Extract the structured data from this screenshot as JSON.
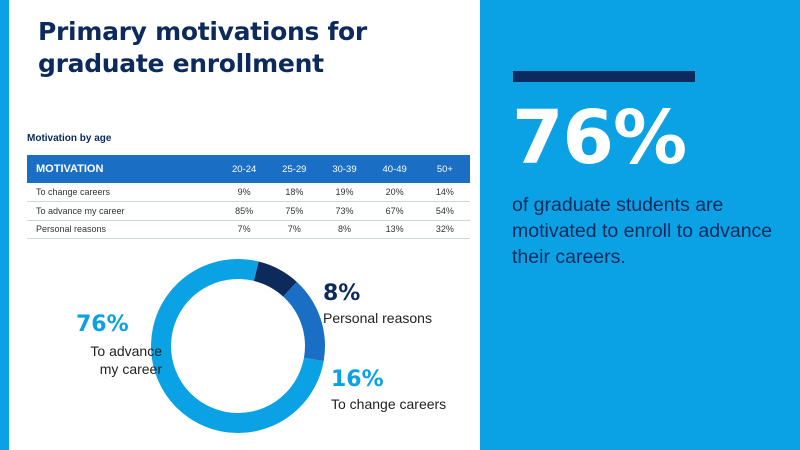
{
  "title": "Primary motivations for graduate enrollment",
  "subtitle": "Motivation by age",
  "table": {
    "headers": [
      "MOTIVATION",
      "20-24",
      "25-29",
      "30-39",
      "40-49",
      "50+"
    ],
    "rows": [
      [
        "To change careers",
        "9%",
        "18%",
        "19%",
        "20%",
        "14%"
      ],
      [
        "To advance my career",
        "85%",
        "75%",
        "73%",
        "67%",
        "54%"
      ],
      [
        "Personal reasons",
        "7%",
        "7%",
        "8%",
        "13%",
        "32%"
      ]
    ]
  },
  "chart_data": {
    "type": "pie",
    "donut": true,
    "slices": [
      {
        "label": "To advance my career",
        "value": 76,
        "display": "76%",
        "color": "#0aa2e4"
      },
      {
        "label": "Personal reasons",
        "value": 8,
        "display": "8%",
        "color": "#0d2a5c"
      },
      {
        "label": "To change careers",
        "value": 16,
        "display": "16%",
        "color": "#1a6fc4"
      }
    ],
    "label_lines": {
      "advance": [
        "To advance",
        "my career"
      ]
    }
  },
  "stat": {
    "value": "76%",
    "text": "of graduate students are motivated to enroll to advance their careers."
  },
  "colors": {
    "navy": "#0d2a5c",
    "sky": "#0aa2e4",
    "blue": "#1a6fc4",
    "white": "#ffffff"
  }
}
